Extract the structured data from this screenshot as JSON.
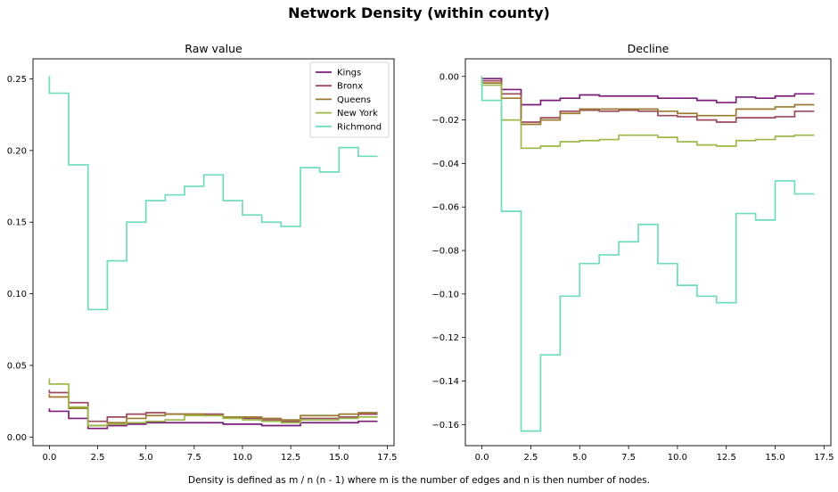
{
  "figure": {
    "title": "Network Density (within county)",
    "caption": "Density is defined as m / n (n - 1) where m is the number of edges and n is then number of nodes."
  },
  "colors": {
    "Kings": "#7b1e7a",
    "Bronx": "#9a4a5c",
    "Queens": "#9a7a2e",
    "New York": "#9cb84a",
    "Richmond": "#6fdcbe"
  },
  "chart_data": [
    {
      "type": "line",
      "drawstyle": "steps-post",
      "title": "Raw value",
      "xlabel": "",
      "ylabel": "",
      "xlim": [
        -0.85,
        17.85
      ],
      "ylim": [
        -0.006,
        0.264
      ],
      "xticks": [
        0.0,
        2.5,
        5.0,
        7.5,
        10.0,
        12.5,
        15.0,
        17.5
      ],
      "xtick_labels": [
        "0.0",
        "2.5",
        "5.0",
        "7.5",
        "10.0",
        "12.5",
        "15.0",
        "17.5"
      ],
      "yticks": [
        0.0,
        0.05,
        0.1,
        0.15,
        0.2,
        0.25
      ],
      "ytick_labels": [
        "0.00",
        "0.05",
        "0.10",
        "0.15",
        "0.20",
        "0.25"
      ],
      "grid": false,
      "legend": "upper-right",
      "x": [
        0,
        1,
        2,
        3,
        4,
        5,
        6,
        7,
        8,
        9,
        10,
        11,
        12,
        13,
        14,
        15,
        16,
        17
      ],
      "series": [
        {
          "name": "Kings",
          "start": 0.02,
          "values": [
            0.018,
            0.013,
            0.006,
            0.008,
            0.009,
            0.01,
            0.01,
            0.01,
            0.01,
            0.009,
            0.009,
            0.008,
            0.008,
            0.01,
            0.01,
            0.01,
            0.011,
            0.011
          ]
        },
        {
          "name": "Bronx",
          "start": 0.033,
          "values": [
            0.031,
            0.024,
            0.011,
            0.014,
            0.016,
            0.017,
            0.016,
            0.016,
            0.016,
            0.014,
            0.013,
            0.012,
            0.011,
            0.013,
            0.013,
            0.014,
            0.016,
            0.016
          ]
        },
        {
          "name": "Queens",
          "start": 0.03,
          "values": [
            0.028,
            0.02,
            0.008,
            0.01,
            0.013,
            0.015,
            0.016,
            0.016,
            0.015,
            0.014,
            0.014,
            0.013,
            0.012,
            0.015,
            0.015,
            0.016,
            0.017,
            0.017
          ]
        },
        {
          "name": "New York",
          "start": 0.041,
          "values": [
            0.037,
            0.021,
            0.008,
            0.009,
            0.01,
            0.011,
            0.012,
            0.015,
            0.015,
            0.013,
            0.012,
            0.011,
            0.01,
            0.012,
            0.012,
            0.013,
            0.014,
            0.014
          ]
        },
        {
          "name": "Richmond",
          "start": 0.252,
          "values": [
            0.24,
            0.19,
            0.089,
            0.123,
            0.15,
            0.165,
            0.169,
            0.175,
            0.183,
            0.165,
            0.155,
            0.15,
            0.147,
            0.188,
            0.185,
            0.202,
            0.196,
            0.196
          ]
        }
      ]
    },
    {
      "type": "line",
      "drawstyle": "steps-post",
      "title": "Decline",
      "xlabel": "",
      "ylabel": "",
      "xlim": [
        -0.85,
        17.85
      ],
      "ylim": [
        -0.1697,
        0.0081
      ],
      "xticks": [
        0.0,
        2.5,
        5.0,
        7.5,
        10.0,
        12.5,
        15.0,
        17.5
      ],
      "xtick_labels": [
        "0.0",
        "2.5",
        "5.0",
        "7.5",
        "10.0",
        "12.5",
        "15.0",
        "17.5"
      ],
      "yticks": [
        0.0,
        -0.02,
        -0.04,
        -0.06,
        -0.08,
        -0.1,
        -0.12,
        -0.14,
        -0.16
      ],
      "ytick_labels": [
        "0.00",
        "−0.02",
        "−0.04",
        "−0.06",
        "−0.08",
        "−0.10",
        "−0.12",
        "−0.14",
        "−0.16"
      ],
      "grid": false,
      "legend": "none",
      "x": [
        0,
        1,
        2,
        3,
        4,
        5,
        6,
        7,
        8,
        9,
        10,
        11,
        12,
        13,
        14,
        15,
        16,
        17
      ],
      "series": [
        {
          "name": "Kings",
          "start": 0.0,
          "values": [
            -0.001,
            -0.006,
            -0.013,
            -0.011,
            -0.01,
            -0.0085,
            -0.009,
            -0.009,
            -0.009,
            -0.01,
            -0.01,
            -0.011,
            -0.012,
            -0.0095,
            -0.01,
            -0.009,
            -0.008,
            -0.008
          ]
        },
        {
          "name": "Bronx",
          "start": 0.0,
          "values": [
            -0.002,
            -0.008,
            -0.021,
            -0.019,
            -0.016,
            -0.0155,
            -0.016,
            -0.0155,
            -0.016,
            -0.018,
            -0.0185,
            -0.02,
            -0.021,
            -0.019,
            -0.019,
            -0.0185,
            -0.016,
            -0.016
          ]
        },
        {
          "name": "Queens",
          "start": 0.0,
          "values": [
            -0.003,
            -0.01,
            -0.022,
            -0.02,
            -0.017,
            -0.015,
            -0.015,
            -0.015,
            -0.015,
            -0.016,
            -0.017,
            -0.018,
            -0.018,
            -0.015,
            -0.015,
            -0.014,
            -0.013,
            -0.013
          ]
        },
        {
          "name": "New York",
          "start": 0.0,
          "values": [
            -0.004,
            -0.02,
            -0.033,
            -0.032,
            -0.03,
            -0.0295,
            -0.029,
            -0.027,
            -0.027,
            -0.028,
            -0.03,
            -0.0315,
            -0.032,
            -0.0295,
            -0.029,
            -0.0275,
            -0.027,
            -0.027
          ]
        },
        {
          "name": "Richmond",
          "start": 0.0,
          "values": [
            -0.011,
            -0.062,
            -0.163,
            -0.128,
            -0.101,
            -0.086,
            -0.082,
            -0.076,
            -0.068,
            -0.086,
            -0.096,
            -0.101,
            -0.104,
            -0.063,
            -0.066,
            -0.048,
            -0.054,
            -0.054
          ]
        }
      ]
    }
  ]
}
